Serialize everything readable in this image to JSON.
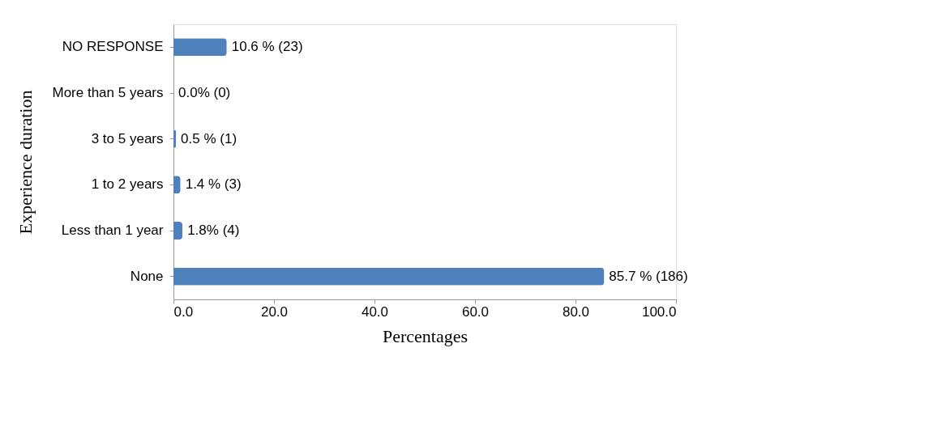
{
  "chart_data": {
    "type": "bar",
    "orientation": "horizontal",
    "xlabel": "Percentages",
    "ylabel": "Experience duration",
    "categories": [
      "NO RESPONSE",
      "More than 5 years",
      "3 to 5 years",
      "1 to 2 years",
      "Less than 1 year",
      "None"
    ],
    "values": [
      10.6,
      0.0,
      0.5,
      1.4,
      1.8,
      85.7
    ],
    "value_labels": [
      "10.6 % (23)",
      "0.0% (0)",
      "0.5 % (1)",
      "1.4  % (3)",
      "1.8% (4)",
      "85.7 % (186)"
    ],
    "color": "#4f81bd",
    "xlim": [
      0,
      100
    ],
    "xticks": [
      {
        "value": 0,
        "label": "0.0"
      },
      {
        "value": 20,
        "label": "20.0"
      },
      {
        "value": 40,
        "label": "40.0"
      },
      {
        "value": 60,
        "label": "60.0"
      },
      {
        "value": 80,
        "label": "80.0"
      },
      {
        "value": 100,
        "label": "100.0"
      }
    ],
    "grid": false
  }
}
